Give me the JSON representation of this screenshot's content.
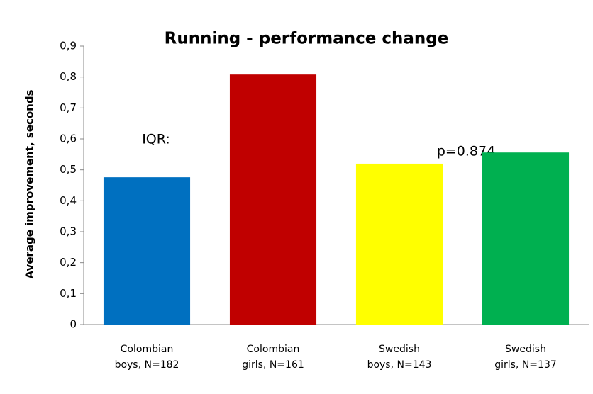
{
  "chart_data": {
    "type": "bar",
    "title": "Running - performance change",
    "ylabel": "Average improvement, seconds",
    "categories": [
      "Colombian\nboys, N=182",
      "Colombian\ngirls, N=161",
      "Swedish\nboys, N=143",
      "Swedish\ngirls, N=137"
    ],
    "values": [
      0.476,
      0.808,
      0.52,
      0.556
    ],
    "colors": [
      "#0070c0",
      "#c00000",
      "#ffff00",
      "#00b050"
    ],
    "ylim": [
      0,
      0.9
    ],
    "yticks": [
      0,
      {
        "value": 0.1,
        "label": "0,1"
      },
      {
        "value": 0.2,
        "label": "0,2"
      },
      {
        "value": 0.3,
        "label": "0,3"
      },
      {
        "value": 0.4,
        "label": "0,4"
      },
      {
        "value": 0.5,
        "label": "0,5"
      },
      {
        "value": 0.6,
        "label": "0,6"
      },
      {
        "value": 0.7,
        "label": "0,7"
      },
      {
        "value": 0.8,
        "label": "0,8"
      },
      {
        "value": 0.9,
        "label": "0,9"
      }
    ],
    "grid": false,
    "annotations": [
      "IQR:",
      "p=0.874"
    ]
  }
}
